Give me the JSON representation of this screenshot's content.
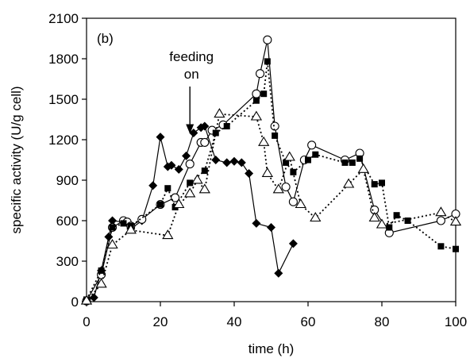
{
  "chart_data": {
    "type": "line",
    "xlabel": "time (h)",
    "ylabel": "specific activity (U/g cell)",
    "xlim": [
      0,
      100
    ],
    "ylim": [
      0,
      2100
    ],
    "xticks": [
      0,
      20,
      40,
      60,
      80,
      100
    ],
    "yticks": [
      0,
      300,
      600,
      900,
      1200,
      1500,
      1800,
      2100
    ],
    "grid": false,
    "panel_label": "(b)",
    "annotations": [
      {
        "text_lines": [
          "feeding",
          "on"
        ],
        "arrow_to": {
          "x": 28,
          "y": 1250
        }
      }
    ],
    "series": [
      {
        "marker": "diamond-filled",
        "line": "solid",
        "points": [
          [
            0,
            10
          ],
          [
            2,
            30
          ],
          [
            4,
            230
          ],
          [
            6,
            480
          ],
          [
            7,
            600
          ],
          [
            10,
            590
          ],
          [
            12,
            540
          ],
          [
            15,
            600
          ],
          [
            18,
            860
          ],
          [
            20,
            1220
          ],
          [
            22,
            1000
          ],
          [
            23,
            1010
          ],
          [
            25,
            980
          ],
          [
            27,
            1080
          ],
          [
            29,
            1250
          ],
          [
            31,
            1290
          ],
          [
            32,
            1300
          ],
          [
            35,
            1050
          ],
          [
            38,
            1030
          ],
          [
            40,
            1040
          ],
          [
            42,
            1030
          ],
          [
            44,
            950
          ],
          [
            46,
            580
          ],
          [
            50,
            550
          ],
          [
            52,
            210
          ],
          [
            56,
            430
          ]
        ]
      },
      {
        "marker": "circle-open",
        "line": "solid",
        "points": [
          [
            0,
            5
          ],
          [
            4,
            200
          ],
          [
            7,
            550
          ],
          [
            10,
            600
          ],
          [
            11,
            590
          ],
          [
            12,
            560
          ],
          [
            15,
            610
          ],
          [
            20,
            720
          ],
          [
            24,
            770
          ],
          [
            28,
            1020
          ],
          [
            31,
            1180
          ],
          [
            32,
            1180
          ],
          [
            34,
            1270
          ],
          [
            37,
            1310
          ],
          [
            46,
            1540
          ],
          [
            47,
            1690
          ],
          [
            49,
            1940
          ],
          [
            51,
            1300
          ],
          [
            54,
            850
          ],
          [
            56,
            740
          ],
          [
            59,
            1050
          ],
          [
            61,
            1160
          ],
          [
            70,
            1050
          ],
          [
            74,
            1100
          ],
          [
            78,
            680
          ],
          [
            82,
            510
          ],
          [
            96,
            600
          ],
          [
            100,
            650
          ]
        ]
      },
      {
        "marker": "square-filled",
        "line": "dotted",
        "points": [
          [
            0,
            15
          ],
          [
            4,
            230
          ],
          [
            7,
            550
          ],
          [
            10,
            580
          ],
          [
            12,
            560
          ],
          [
            20,
            720
          ],
          [
            22,
            840
          ],
          [
            24,
            700
          ],
          [
            28,
            880
          ],
          [
            32,
            970
          ],
          [
            35,
            1250
          ],
          [
            38,
            1300
          ],
          [
            46,
            1490
          ],
          [
            48,
            1540
          ],
          [
            49,
            1780
          ],
          [
            51,
            1230
          ],
          [
            54,
            1030
          ],
          [
            56,
            960
          ],
          [
            60,
            1050
          ],
          [
            62,
            1090
          ],
          [
            70,
            1030
          ],
          [
            72,
            1030
          ],
          [
            74,
            1060
          ],
          [
            78,
            870
          ],
          [
            80,
            880
          ],
          [
            82,
            550
          ],
          [
            84,
            640
          ],
          [
            87,
            600
          ],
          [
            96,
            410
          ],
          [
            100,
            390
          ]
        ]
      },
      {
        "marker": "triangle-open",
        "line": "dotted",
        "points": [
          [
            0,
            5
          ],
          [
            4,
            130
          ],
          [
            7,
            420
          ],
          [
            12,
            530
          ],
          [
            22,
            490
          ],
          [
            25,
            720
          ],
          [
            28,
            800
          ],
          [
            30,
            900
          ],
          [
            32,
            830
          ],
          [
            36,
            1390
          ],
          [
            46,
            1370
          ],
          [
            48,
            1180
          ],
          [
            49,
            950
          ],
          [
            52,
            830
          ],
          [
            55,
            1070
          ],
          [
            58,
            720
          ],
          [
            62,
            620
          ],
          [
            71,
            870
          ],
          [
            75,
            980
          ],
          [
            78,
            620
          ],
          [
            80,
            570
          ],
          [
            96,
            660
          ],
          [
            100,
            590
          ]
        ]
      }
    ]
  }
}
